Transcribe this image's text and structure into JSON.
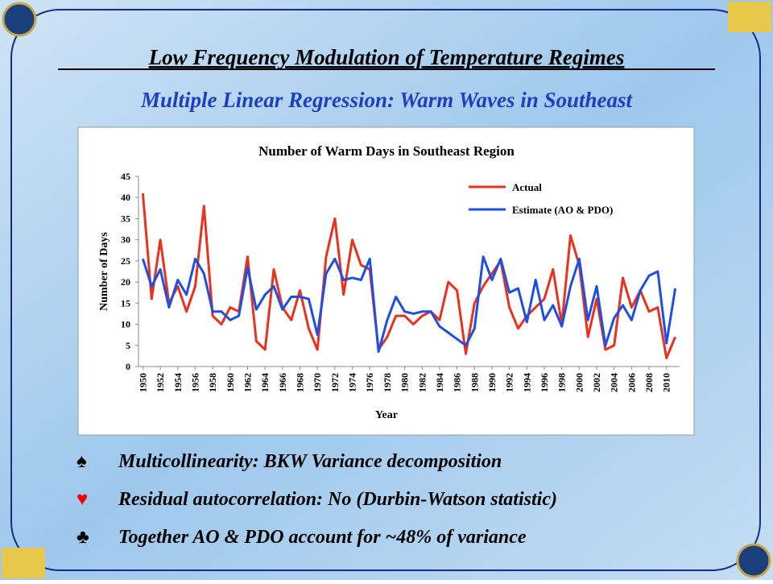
{
  "slide": {
    "title": "Low Frequency Modulation of Temperature Regimes",
    "subtitle": "Multiple Linear Regression: Warm Waves in Southeast",
    "bullets": [
      {
        "symbol": "♠",
        "text": "Multicollinearity:  BKW Variance decomposition"
      },
      {
        "symbol": "♥",
        "text": "Residual autocorrelation:  No (Durbin-Watson statistic)"
      },
      {
        "symbol": "♣",
        "text": "Together AO & PDO account for ~48% of variance"
      }
    ]
  },
  "chart_data": {
    "type": "line",
    "title": "Number of Warm Days in Southeast Region",
    "x_label": "Year",
    "y_label": "Number of Days",
    "x": [
      1950,
      1951,
      1952,
      1953,
      1954,
      1955,
      1956,
      1957,
      1958,
      1959,
      1960,
      1961,
      1962,
      1963,
      1964,
      1965,
      1966,
      1967,
      1968,
      1969,
      1970,
      1971,
      1972,
      1973,
      1974,
      1975,
      1976,
      1977,
      1978,
      1979,
      1980,
      1981,
      1982,
      1983,
      1984,
      1985,
      1986,
      1987,
      1988,
      1989,
      1990,
      1991,
      1992,
      1993,
      1994,
      1995,
      1996,
      1997,
      1998,
      1999,
      2000,
      2001,
      2002,
      2003,
      2004,
      2005,
      2006,
      2007,
      2008,
      2009,
      2010,
      2011
    ],
    "series": [
      {
        "name": "Actual",
        "color": "#e8321e",
        "values": [
          41,
          16,
          30,
          15,
          19,
          13,
          19,
          38,
          12,
          10,
          14,
          13,
          26,
          6,
          4,
          23,
          14,
          11,
          18,
          9,
          4,
          26,
          35,
          17,
          30,
          24,
          23,
          4,
          7,
          12,
          12,
          10,
          12,
          13,
          11,
          20,
          18,
          3,
          15,
          19,
          22,
          25,
          14,
          9,
          12,
          14,
          16,
          23,
          10,
          31,
          24,
          7,
          16,
          4,
          5,
          21,
          14,
          18,
          13,
          14,
          2,
          7
        ]
      },
      {
        "name": "Estimate (AO & PDO)",
        "color": "#1e4fe0",
        "values": [
          25.5,
          19,
          23,
          14,
          20.5,
          17,
          25.5,
          22,
          13,
          13,
          11,
          12,
          23.5,
          13.5,
          17,
          19,
          13.5,
          16.5,
          16.5,
          16,
          7.5,
          22,
          25.5,
          20.5,
          21,
          20.5,
          25.5,
          3.5,
          11,
          16.5,
          13,
          12.5,
          13,
          13,
          9.5,
          8,
          6.5,
          5,
          9,
          26,
          20.5,
          25.5,
          17.5,
          18.5,
          10.5,
          20.5,
          11,
          14.5,
          9.5,
          19,
          25.5,
          11,
          19,
          5,
          11.5,
          14.5,
          11,
          18,
          21.5,
          22.5,
          5.5,
          18.5
        ]
      }
    ],
    "xlim": [
      1949.5,
      2011.5
    ],
    "xticks": [
      1950,
      1952,
      1954,
      1956,
      1958,
      1960,
      1962,
      1964,
      1966,
      1968,
      1970,
      1972,
      1974,
      1976,
      1978,
      1980,
      1982,
      1984,
      1986,
      1988,
      1990,
      1992,
      1994,
      1996,
      1998,
      2000,
      2002,
      2004,
      2006,
      2008,
      2010
    ],
    "ylim": [
      0,
      45
    ],
    "yticks": [
      0,
      5,
      10,
      15,
      20,
      25,
      30,
      35,
      40,
      45
    ],
    "grid": false,
    "legend": "top-right"
  }
}
